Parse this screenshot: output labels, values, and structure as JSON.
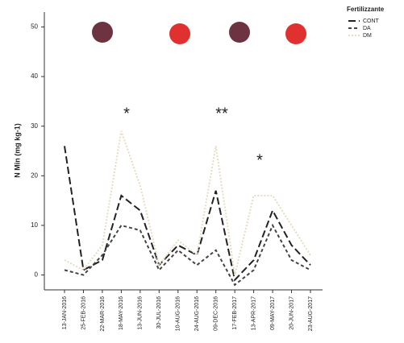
{
  "chart_data": {
    "type": "line",
    "y_label": "N Min (mg kg-1)",
    "legend_title": "Fertilizzante",
    "categories": [
      "13-JAN-2016",
      "25-FEB-2016",
      "22-MAR-2016",
      "18-MAY-2016",
      "13-JUN-2016",
      "30-JUL-2016",
      "10-AUG-2016",
      "24-AUG-2016",
      "09-DEC-2016",
      "17-FEB-2017",
      "13-APR-2017",
      "09-MAY-2017",
      "20-JUN-2017",
      "23-AUG-2017"
    ],
    "series": [
      {
        "name": "CONT",
        "color": "#222222",
        "dash": "9 4",
        "values": [
          26,
          1,
          3,
          16,
          13,
          2,
          6,
          4,
          17,
          -1,
          3,
          13,
          6,
          2
        ]
      },
      {
        "name": "DA",
        "color": "#444444",
        "dash": "4 3",
        "values": [
          1,
          0,
          4,
          10,
          9,
          1,
          5,
          2,
          5,
          -2,
          1,
          10,
          3,
          1
        ]
      },
      {
        "name": "DM",
        "color": "#e6dcc0",
        "dash": "2 2",
        "values": [
          3,
          1,
          6,
          29,
          18,
          2,
          7,
          4,
          26,
          0,
          16,
          16,
          10,
          4
        ]
      }
    ],
    "annotations": [
      "*",
      "**",
      "*"
    ],
    "ylim": [
      -3,
      53
    ],
    "yticks": [
      0,
      10,
      20,
      30,
      40,
      50
    ]
  }
}
